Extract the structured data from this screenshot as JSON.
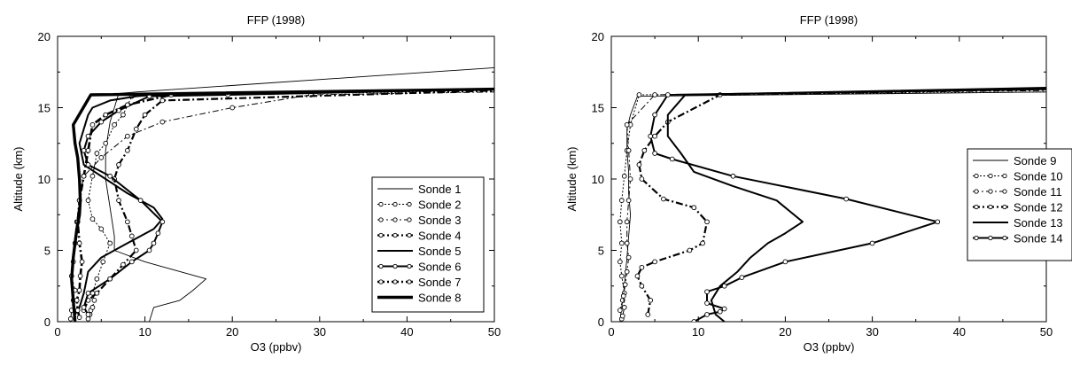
{
  "chart_data": [
    {
      "type": "line",
      "title": "FFP (1998)",
      "xlabel": "O3 (ppbv)",
      "ylabel": "Altitude (km)",
      "xlim": [
        0,
        50
      ],
      "ylim": [
        0,
        20
      ],
      "xticks": [
        "0",
        "10",
        "20",
        "30",
        "40",
        "50"
      ],
      "yticks": [
        "0",
        "5",
        "10",
        "15",
        "20"
      ],
      "legend_position": "lower-right",
      "series": [
        {
          "name": "Sonde 1",
          "style": "thin",
          "x": [
            10.5,
            11.0,
            14.0,
            15.5,
            17.0,
            10.0,
            6.5,
            6.5,
            6.0,
            5.5,
            5.5,
            6.0,
            6.5,
            7.0,
            9.0,
            50.0
          ],
          "y": [
            0,
            1.0,
            1.5,
            2.2,
            3.0,
            4.2,
            5.0,
            6.0,
            8.0,
            10.0,
            12.0,
            14.0,
            15.0,
            16.0,
            16.1,
            17.8
          ]
        },
        {
          "name": "Sonde 2",
          "style": "dotted-circle",
          "x": [
            3.5,
            3.7,
            3.8,
            4.0,
            4.2,
            4.0,
            4.5,
            5.2,
            6.0,
            5.0,
            4.0,
            3.5,
            4.0,
            4.5,
            5.5,
            6.5,
            7.5,
            8.5,
            50.0
          ],
          "y": [
            0.2,
            0.5,
            0.8,
            1.0,
            1.5,
            2.0,
            3.0,
            4.2,
            5.5,
            6.5,
            7.2,
            8.5,
            10.2,
            11.8,
            12.5,
            13.8,
            14.5,
            15.8,
            16.2
          ]
        },
        {
          "name": "Sonde 3",
          "style": "dashdot-circle",
          "x": [
            1.5,
            1.6,
            1.8,
            2.0,
            1.6,
            1.8,
            2.0,
            2.2,
            2.5,
            3.0,
            5.0,
            8.0,
            12.0,
            20.0,
            29.0,
            50.0
          ],
          "y": [
            0.2,
            0.8,
            1.5,
            2.2,
            3.2,
            4.2,
            5.5,
            7.0,
            8.5,
            10.2,
            11.5,
            13.0,
            14.0,
            15.0,
            15.9,
            16.1
          ]
        },
        {
          "name": "Sonde 4",
          "style": "dashdot-circle-bold",
          "x": [
            3.0,
            3.5,
            4.5,
            6.0,
            7.5,
            9.0,
            8.5,
            8.0,
            7.0,
            6.5,
            7.0,
            8.0,
            9.0,
            10.0,
            12.0,
            50.0
          ],
          "y": [
            0.8,
            1.5,
            2.0,
            3.0,
            4.0,
            5.0,
            6.0,
            7.0,
            8.5,
            10.0,
            11.0,
            12.0,
            13.5,
            14.5,
            15.5,
            16.2
          ]
        },
        {
          "name": "Sonde 5",
          "style": "bold",
          "x": [
            2.0,
            2.5,
            3.0,
            3.5,
            5.0,
            8.0,
            11.0,
            12.0,
            11.0,
            8.0,
            5.5,
            3.0,
            2.5,
            3.0,
            3.5,
            4.0,
            6.0,
            9.0,
            13.0,
            50.0
          ],
          "y": [
            0.5,
            1.0,
            2.0,
            3.5,
            4.5,
            5.5,
            6.5,
            7.2,
            8.0,
            9.0,
            10.0,
            11.0,
            12.5,
            13.5,
            14.5,
            15.0,
            15.5,
            15.8,
            16.0,
            16.3
          ]
        },
        {
          "name": "Sonde 6",
          "style": "bold-circle",
          "x": [
            3.5,
            3.0,
            3.5,
            6.0,
            8.5,
            10.5,
            11.0,
            11.5,
            12.0,
            9.5,
            6.0,
            3.5,
            3.0,
            3.5,
            5.0,
            7.0,
            10.5,
            19.5,
            50.0
          ],
          "y": [
            0.5,
            1.0,
            2.0,
            3.0,
            4.2,
            5.0,
            5.5,
            6.2,
            7.0,
            8.5,
            10.2,
            11.0,
            12.0,
            13.0,
            14.0,
            14.8,
            15.8,
            15.9,
            16.3
          ]
        },
        {
          "name": "Sonde 7",
          "style": "dashdot-circle-bold2",
          "x": [
            2.5,
            2.3,
            2.2,
            2.5,
            2.6,
            2.8,
            2.5,
            2.3,
            2.5,
            3.0,
            3.5,
            4.0,
            5.5,
            8.0,
            13.0,
            50.0
          ],
          "y": [
            0.3,
            0.8,
            1.5,
            2.2,
            3.2,
            4.2,
            5.5,
            7.0,
            8.5,
            10.2,
            12.0,
            13.8,
            14.5,
            15.2,
            15.9,
            16.3
          ]
        },
        {
          "name": "Sonde 8",
          "style": "extra-bold",
          "x": [
            2.0,
            1.8,
            1.6,
            1.8,
            2.0,
            2.2,
            2.5,
            2.6,
            2.5,
            2.3,
            2.0,
            1.8,
            3.8,
            50.0
          ],
          "y": [
            0.0,
            1.5,
            3.0,
            4.5,
            5.5,
            6.5,
            7.5,
            8.5,
            10.0,
            11.5,
            12.5,
            13.8,
            15.9,
            16.3
          ]
        }
      ]
    },
    {
      "type": "line",
      "title": "FFP (1998)",
      "xlabel": "O3 (ppbv)",
      "ylabel": "Altitude (km)",
      "xlim": [
        0,
        50
      ],
      "ylim": [
        0,
        20
      ],
      "xticks": [
        "0",
        "10",
        "20",
        "30",
        "40",
        "50"
      ],
      "yticks": [
        "0",
        "5",
        "10",
        "15",
        "20"
      ],
      "legend_position": "right",
      "series": [
        {
          "name": "Sonde 9",
          "style": "thin",
          "x": [
            1.0,
            1.2,
            1.5,
            1.8,
            2.0,
            2.2,
            2.0,
            2.0,
            1.8,
            1.8,
            2.2,
            3.0,
            50.0
          ],
          "y": [
            0.0,
            1.0,
            2.5,
            4.5,
            6.0,
            7.5,
            9.0,
            10.5,
            12.0,
            13.5,
            14.5,
            15.8,
            16.1
          ]
        },
        {
          "name": "Sonde 10",
          "style": "dotted-circle",
          "x": [
            1.2,
            1.0,
            1.3,
            1.5,
            1.2,
            1.0,
            1.2,
            1.0,
            1.2,
            1.5,
            1.8,
            2.2,
            3.2,
            50.0
          ],
          "y": [
            0.2,
            0.8,
            1.5,
            2.0,
            3.2,
            4.2,
            5.5,
            7.0,
            8.5,
            10.2,
            12.0,
            13.8,
            15.9,
            16.1
          ]
        },
        {
          "name": "Sonde 11",
          "style": "dashdot-circle",
          "x": [
            1.3,
            1.5,
            1.4,
            1.6,
            1.8,
            2.0,
            1.8,
            1.8,
            2.0,
            2.2,
            2.0,
            1.8,
            5.0,
            50.0
          ],
          "y": [
            0.4,
            1.0,
            1.8,
            2.6,
            3.5,
            4.5,
            5.5,
            7.0,
            8.5,
            10.0,
            12.0,
            13.8,
            15.9,
            16.2
          ]
        },
        {
          "name": "Sonde 12",
          "style": "dashdot-circle-bold",
          "x": [
            4.2,
            4.5,
            3.5,
            3.0,
            3.5,
            5.0,
            9.0,
            10.5,
            11.0,
            9.5,
            6.0,
            3.5,
            3.2,
            3.8,
            5.0,
            6.5,
            12.5,
            50.0
          ],
          "y": [
            0.5,
            1.5,
            2.5,
            3.2,
            3.8,
            4.2,
            5.0,
            5.5,
            7.0,
            8.0,
            8.6,
            10.0,
            11.0,
            12.0,
            13.0,
            14.0,
            15.9,
            16.3
          ]
        },
        {
          "name": "Sonde 13",
          "style": "bold",
          "x": [
            13.0,
            12.0,
            11.5,
            12.5,
            14.5,
            16.0,
            18.0,
            20.0,
            22.0,
            19.0,
            14.0,
            9.5,
            8.0,
            6.5,
            6.5,
            8.5,
            50.0
          ],
          "y": [
            0.0,
            0.5,
            1.5,
            2.5,
            3.5,
            4.5,
            5.5,
            6.2,
            7.0,
            8.5,
            9.5,
            10.5,
            11.8,
            13.0,
            14.5,
            15.9,
            16.4
          ]
        },
        {
          "name": "Sonde 14",
          "style": "bold-circle",
          "x": [
            9.5,
            11.0,
            12.5,
            13.0,
            11.0,
            11.0,
            13.0,
            15.0,
            20.0,
            30.0,
            37.5,
            27.0,
            14.0,
            7.0,
            5.0,
            4.5,
            5.0,
            6.5,
            50.0
          ],
          "y": [
            0.0,
            0.5,
            0.7,
            0.9,
            1.3,
            2.1,
            2.5,
            3.1,
            4.2,
            5.5,
            7.0,
            8.6,
            10.2,
            11.4,
            11.8,
            13.0,
            14.5,
            15.9,
            16.3
          ]
        }
      ]
    }
  ]
}
